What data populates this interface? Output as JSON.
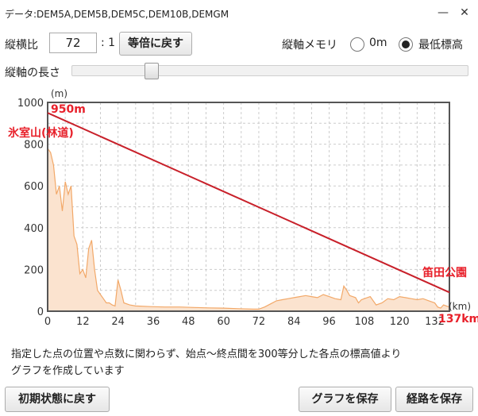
{
  "title": "データ:DEM5A,DEM5B,DEM5C,DEM10B,DEMGM",
  "window": {
    "minimize_glyph": "—",
    "close_glyph": "✕"
  },
  "controls": {
    "ratio_label": "縦横比",
    "ratio_value": "72",
    "ratio_suffix": ": 1",
    "reset_ratio_button": "等倍に戻す",
    "scale_label": "縦軸メモリ",
    "opt_zero": "0m",
    "opt_min": "最低標高",
    "selected_option": "min",
    "axis_length_label": "縦軸の長さ",
    "axis_length_level": 0.19
  },
  "chart_data": {
    "type": "area",
    "ylabel": "(m)",
    "xlabel": "(km)",
    "ylim": [
      0,
      1000
    ],
    "xlim": [
      0,
      137
    ],
    "yticks": [
      0,
      200,
      400,
      600,
      800,
      1000
    ],
    "xticks": [
      0,
      12,
      24,
      36,
      48,
      60,
      72,
      84,
      96,
      108,
      120,
      132
    ],
    "grid": true,
    "profile": {
      "x": [
        0,
        1,
        2,
        3,
        4,
        5,
        6,
        7,
        8,
        9,
        10,
        11,
        12,
        13,
        14,
        15,
        16,
        17,
        18,
        19,
        20,
        21,
        22,
        23,
        24,
        25,
        26,
        28,
        30,
        35,
        40,
        45,
        50,
        55,
        60,
        65,
        70,
        72,
        74,
        76,
        78,
        80,
        82,
        84,
        86,
        88,
        90,
        92,
        94,
        96,
        98,
        100,
        101,
        102,
        103,
        104,
        105,
        106,
        107,
        108,
        110,
        112,
        114,
        116,
        118,
        120,
        122,
        124,
        126,
        128,
        130,
        132,
        133,
        134,
        135,
        136,
        137
      ],
      "y": [
        780,
        760,
        700,
        560,
        600,
        480,
        620,
        560,
        600,
        360,
        320,
        180,
        200,
        160,
        300,
        340,
        200,
        100,
        80,
        60,
        40,
        40,
        30,
        25,
        150,
        100,
        40,
        30,
        25,
        22,
        20,
        20,
        18,
        16,
        15,
        12,
        10,
        10,
        20,
        35,
        50,
        55,
        60,
        65,
        70,
        75,
        70,
        65,
        80,
        70,
        60,
        55,
        120,
        100,
        75,
        70,
        65,
        40,
        55,
        60,
        70,
        30,
        40,
        60,
        55,
        70,
        65,
        60,
        55,
        60,
        50,
        40,
        20,
        15,
        30,
        25,
        20
      ]
    },
    "line": {
      "x": [
        0,
        137
      ],
      "y": [
        950,
        90
      ]
    },
    "annotations": {
      "start_elev": "950m",
      "start_name": "氷室山(林道)",
      "end_name": "笛田公園",
      "end_dist": "137km"
    },
    "colors": {
      "fill": "#fbe3cf",
      "stroke": "#f2a868",
      "line": "#c8202a",
      "label": "#e8202a",
      "grid": "#cccccc",
      "frame": "#555555"
    }
  },
  "note": {
    "line1": "指定した点の位置や点数に関わらず、始点～終点間を300等分した各点の標高値より",
    "line2": "グラフを作成しています"
  },
  "buttons": {
    "reset": "初期状態に戻す",
    "save_graph": "グラフを保存",
    "save_route": "経路を保存"
  }
}
